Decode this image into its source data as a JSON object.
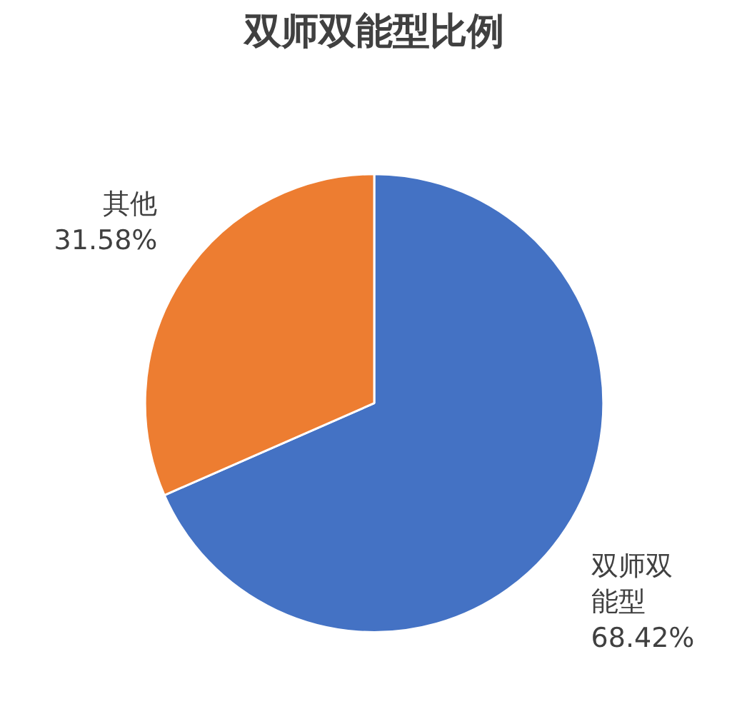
{
  "chart_data": {
    "type": "pie",
    "title": "双师双能型比例",
    "categories": [
      "双师双能型",
      "其他"
    ],
    "values": [
      68.42,
      31.58
    ],
    "colors": [
      "#4472c4",
      "#ed7d31"
    ],
    "value_labels": [
      "68.42%",
      "31.58%"
    ]
  }
}
